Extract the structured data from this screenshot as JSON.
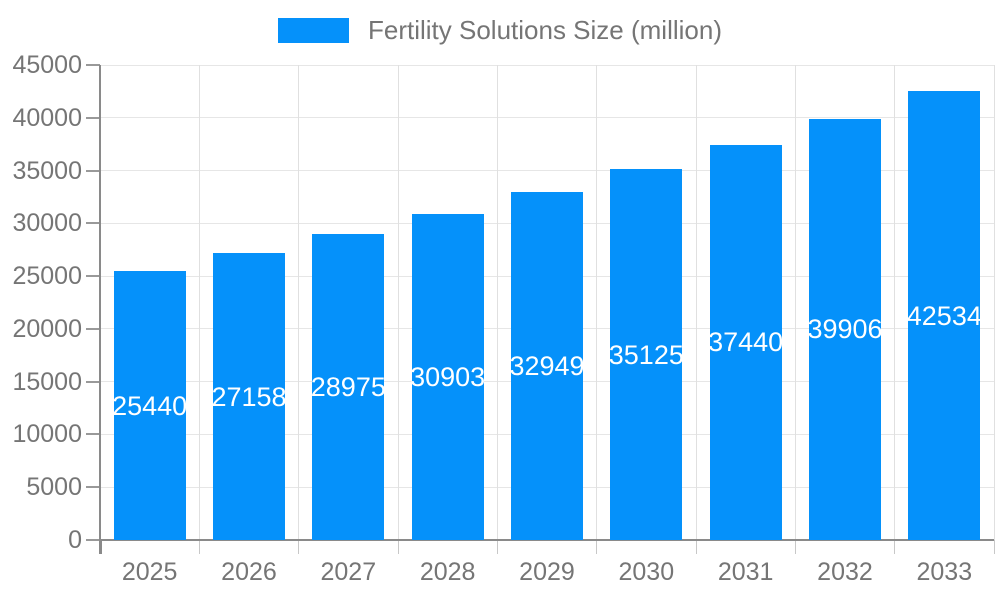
{
  "chart_data": {
    "type": "bar",
    "legend": "Fertility Solutions Size (million)",
    "categories": [
      "2025",
      "2026",
      "2027",
      "2028",
      "2029",
      "2030",
      "2031",
      "2032",
      "2033"
    ],
    "values": [
      25440,
      27158,
      28975,
      30903,
      32949,
      35125,
      37440,
      39906,
      42534
    ],
    "series": [
      {
        "name": "Fertility Solutions Size (million)",
        "values": [
          25440,
          27158,
          28975,
          30903,
          32949,
          35125,
          37440,
          39906,
          42534
        ]
      }
    ],
    "title": "",
    "xlabel": "",
    "ylabel": "",
    "ylim": [
      0,
      45000
    ],
    "ytick_step": 5000,
    "ytick_labels": [
      "0",
      "5000",
      "10000",
      "15000",
      "20000",
      "25000",
      "30000",
      "35000",
      "40000",
      "45000"
    ],
    "grid": true,
    "legend_position": "top-center",
    "bar_labels_inside": true,
    "colors": {
      "bar": "#0591fa",
      "bar_value_text": "#ffffff",
      "axis_text": "#757575",
      "legend_text": "#757575",
      "grid_horizontal": "#e6e6e6",
      "grid_vertical": "#e0e0e0",
      "axis_line": "#8a8a8a",
      "background": "#ffffff"
    }
  }
}
